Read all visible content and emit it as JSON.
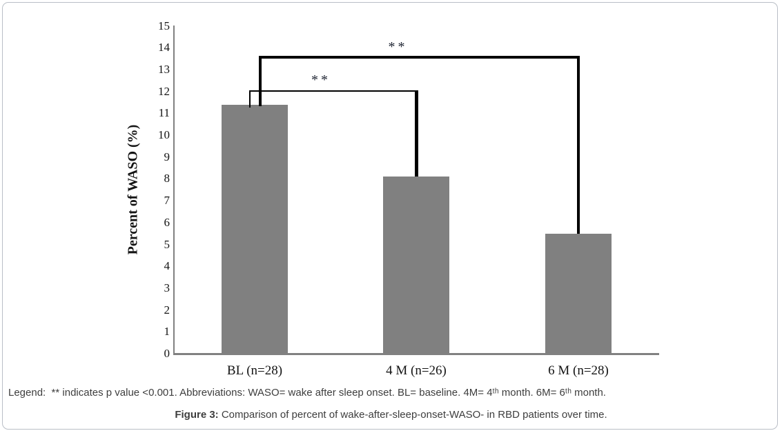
{
  "chart_data": {
    "type": "bar",
    "categories": [
      "BL (n=28)",
      "4 M (n=26)",
      "6 M (n=28)"
    ],
    "values": [
      11.4,
      8.1,
      5.5
    ],
    "title": "",
    "xlabel": "",
    "ylabel": "Percent of WASO (%)",
    "ylim": [
      0,
      15
    ],
    "ytick_step": 1,
    "grid": false,
    "legend_position": "none",
    "bar_color": "#808080",
    "axis_color": "#808080",
    "bracket_color": "#000000",
    "significance": [
      {
        "from_index": 0,
        "to_index": 1,
        "pair": [
          "BL (n=28)",
          "4 M (n=26)"
        ],
        "label": "**",
        "level": 12.0,
        "line_weight": 2,
        "drop_weight": 5
      },
      {
        "from_index": 0,
        "to_index": 2,
        "pair": [
          "BL (n=28)",
          "6 M (n=28)"
        ],
        "label": "**",
        "level": 13.5,
        "line_weight": 4,
        "drop_weight": 4
      }
    ]
  },
  "figure": {
    "legend": "Legend:  ** indicates p value <0.001. Abbreviations: WASO= wake after sleep onset. BL= baseline. 4M= 4ᵗʰ month. 6M= 6ᵗʰ month.",
    "caption_bold": "Figure 3:",
    "caption_text": " Comparison of percent of wake-after-sleep-onset-WASO- in RBD patients over time."
  }
}
